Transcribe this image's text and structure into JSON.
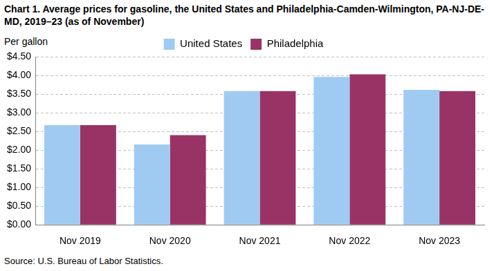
{
  "chart_data": {
    "type": "bar",
    "title": "Chart 1. Average prices for gasoline, the United States and Philadelphia-Camden-Wilmington, PA-NJ-DE-MD, 2019–23 (as of November)",
    "ylabel": "Per gallon",
    "source": "Source: U.S. Bureau of Labor Statistics.",
    "categories": [
      "Nov 2019",
      "Nov 2020",
      "Nov 2021",
      "Nov 2022",
      "Nov 2023"
    ],
    "series": [
      {
        "name": "United States",
        "color": "#9fcbf2",
        "values": [
          2.67,
          2.15,
          3.58,
          3.96,
          3.61
        ]
      },
      {
        "name": "Philadelphia",
        "color": "#993366",
        "values": [
          2.67,
          2.4,
          3.58,
          4.03,
          3.58
        ]
      }
    ],
    "ylim": [
      0,
      4.5
    ],
    "yticks": [
      {
        "value": 0,
        "label": "$0.00"
      },
      {
        "value": 0.5,
        "label": "$0.50"
      },
      {
        "value": 1,
        "label": "$1.00"
      },
      {
        "value": 1.5,
        "label": "$1.50"
      },
      {
        "value": 2,
        "label": "$2.00"
      },
      {
        "value": 2.5,
        "label": "$2.50"
      },
      {
        "value": 3,
        "label": "$3.00"
      },
      {
        "value": 3.5,
        "label": "$3.50"
      },
      {
        "value": 4,
        "label": "$4.00"
      },
      {
        "value": 4.5,
        "label": "$4.50"
      }
    ],
    "grid": true,
    "legend": "top"
  }
}
